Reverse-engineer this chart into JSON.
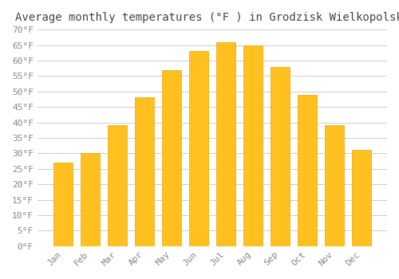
{
  "title": "Average monthly temperatures (°F ) in Grodzisk Wielkopolski",
  "months": [
    "Jan",
    "Feb",
    "Mar",
    "Apr",
    "May",
    "Jun",
    "Jul",
    "Aug",
    "Sep",
    "Oct",
    "Nov",
    "Dec"
  ],
  "values": [
    27,
    30,
    39,
    48,
    57,
    63,
    66,
    65,
    58,
    49,
    39,
    31
  ],
  "bar_color": "#FFC020",
  "bar_edge_color": "#E8A800",
  "background_color": "#FFFFFF",
  "grid_color": "#CCCCCC",
  "text_color": "#888888",
  "title_color": "#444444",
  "ylim": [
    0,
    70
  ],
  "ytick_step": 5,
  "title_fontsize": 10,
  "tick_fontsize": 8,
  "font_family": "monospace"
}
